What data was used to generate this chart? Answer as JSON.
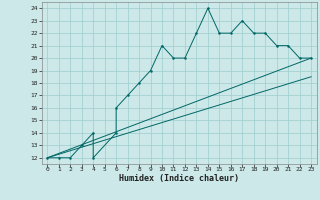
{
  "title": "",
  "xlabel": "Humidex (Indice chaleur)",
  "ylabel": "",
  "bg_color": "#cce8e8",
  "grid_color": "#9ecece",
  "line_color": "#006666",
  "xlim": [
    -0.5,
    23.5
  ],
  "ylim": [
    11.5,
    24.5
  ],
  "xticks": [
    0,
    1,
    2,
    3,
    4,
    5,
    6,
    7,
    8,
    9,
    10,
    11,
    12,
    13,
    14,
    15,
    16,
    17,
    18,
    19,
    20,
    21,
    22,
    23
  ],
  "yticks": [
    12,
    13,
    14,
    15,
    16,
    17,
    18,
    19,
    20,
    21,
    22,
    23,
    24
  ],
  "series1_x": [
    0,
    1,
    2,
    3,
    4,
    4,
    6,
    6,
    7,
    8,
    9,
    10,
    11,
    12,
    13,
    14,
    15,
    16,
    17,
    18,
    19,
    20,
    21,
    22,
    23
  ],
  "series1_y": [
    12,
    12,
    12,
    13,
    14,
    12,
    14,
    16,
    17,
    18,
    19,
    21,
    20,
    20,
    22,
    24,
    22,
    22,
    23,
    22,
    22,
    21,
    21,
    20,
    20
  ],
  "line1_x": [
    0,
    23
  ],
  "line1_y": [
    12,
    20
  ],
  "line2_x": [
    0,
    23
  ],
  "line2_y": [
    12,
    18.5
  ]
}
